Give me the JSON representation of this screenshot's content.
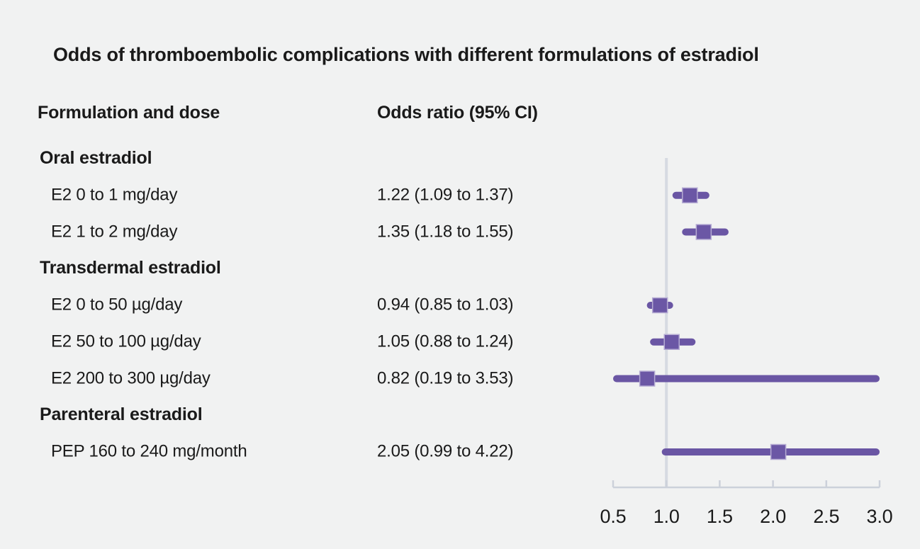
{
  "title": "Odds of thromboembolic complications with different formulations of estradiol",
  "columns": {
    "formulation": "Formulation and dose",
    "odds_ratio": "Odds ratio (95% CI)"
  },
  "colors": {
    "background": "#f1f2f2",
    "text": "#1a1a1a",
    "ci_line": "#6a56a4",
    "marker": "#6b57a5",
    "marker_border": "#b5abd3",
    "reference_line": "#d6dae2",
    "axis": "#ccd1da"
  },
  "chart_data": {
    "type": "scatter",
    "variant": "forest",
    "title": "Odds of thromboembolic complications with different formulations of estradiol",
    "xlabel": "",
    "ylabel": "",
    "legend": "none",
    "grid": "off",
    "x_axis": {
      "min": 0.5,
      "max": 3.0,
      "ticks": [
        0.5,
        1.0,
        1.5,
        2.0,
        2.5,
        3.0
      ],
      "tick_labels": [
        "0.5",
        "1.0",
        "1.5",
        "2.0",
        "2.5",
        "3.0"
      ],
      "reference_line": 1.0
    },
    "rows": [
      {
        "kind": "group",
        "label": "Oral estradiol"
      },
      {
        "kind": "item",
        "label": "E2 0 to 1 mg/day",
        "or_text": "1.22 (1.09 to 1.37)",
        "or": 1.22,
        "ci_low": 1.09,
        "ci_high": 1.37
      },
      {
        "kind": "item",
        "label": "E2 1 to 2 mg/day",
        "or_text": "1.35 (1.18 to 1.55)",
        "or": 1.35,
        "ci_low": 1.18,
        "ci_high": 1.55
      },
      {
        "kind": "group",
        "label": "Transdermal estradiol"
      },
      {
        "kind": "item",
        "label": "E2 0 to 50 µg/day",
        "or_text": "0.94 (0.85 to 1.03)",
        "or": 0.94,
        "ci_low": 0.85,
        "ci_high": 1.03
      },
      {
        "kind": "item",
        "label": "E2 50 to 100 µg/day",
        "or_text": "1.05 (0.88 to 1.24)",
        "or": 1.05,
        "ci_low": 0.88,
        "ci_high": 1.24
      },
      {
        "kind": "item",
        "label": "E2 200 to 300 µg/day",
        "or_text": "0.82 (0.19 to 3.53)",
        "or": 0.82,
        "ci_low": 0.19,
        "ci_high": 3.53
      },
      {
        "kind": "group",
        "label": "Parenteral estradiol"
      },
      {
        "kind": "item",
        "label": "PEP 160 to 240 mg/month",
        "or_text": "2.05 (0.99 to 4.22)",
        "or": 2.05,
        "ci_low": 0.99,
        "ci_high": 4.22
      }
    ]
  }
}
